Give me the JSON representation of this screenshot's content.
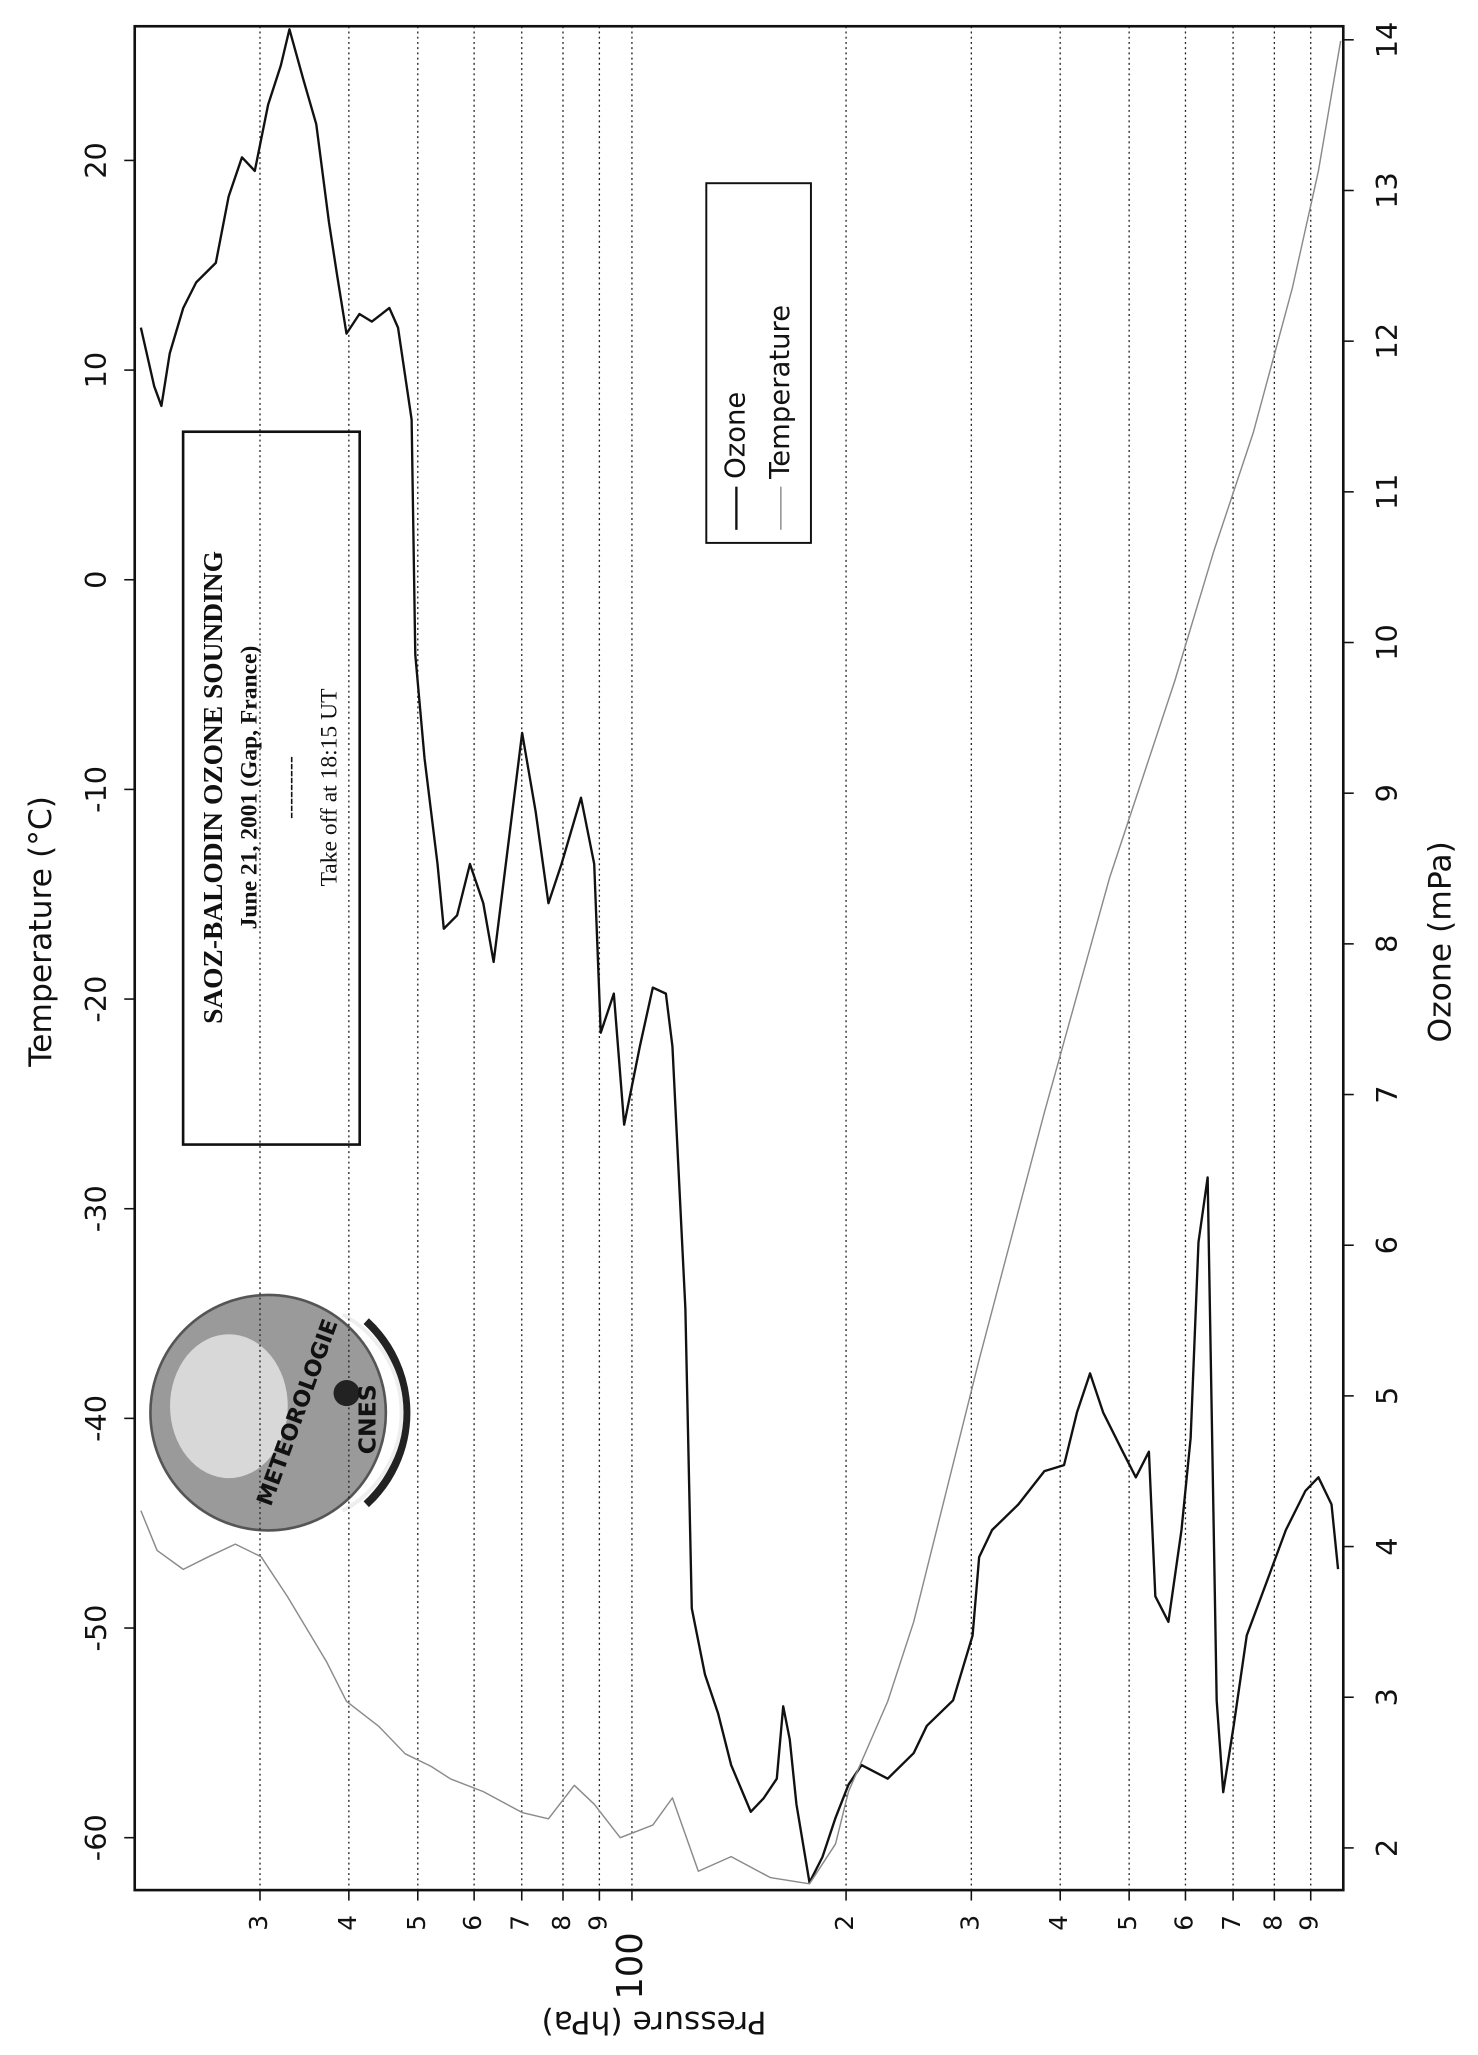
{
  "chart_data": {
    "type": "line",
    "title": "SAOZ-BALODIN OZONE SOUNDING",
    "subtitle": "June 21, 2001 (Gap, France)",
    "separator": "---------",
    "annotation": "Take off at 18:15 UT",
    "logo": {
      "text": "METEOROLOGIE",
      "sub": "CNES"
    },
    "x_label": "Pressure (hPa)",
    "y_label": "Temperature (°C)",
    "y2_label": "Ozone (mPa)",
    "xscale": "log",
    "grid": true,
    "xlim": [
      20,
      1000
    ],
    "xticks": [
      {
        "value": 30,
        "label": "3"
      },
      {
        "value": 40,
        "label": "4"
      },
      {
        "value": 50,
        "label": "5"
      },
      {
        "value": 60,
        "label": "6"
      },
      {
        "value": 70,
        "label": "7"
      },
      {
        "value": 80,
        "label": "8"
      },
      {
        "value": 90,
        "label": "9"
      },
      100,
      {
        "value": 200,
        "label": "2"
      },
      {
        "value": 300,
        "label": "3"
      },
      {
        "value": 400,
        "label": "4"
      },
      {
        "value": 500,
        "label": "5"
      },
      {
        "value": 600,
        "label": "6"
      },
      {
        "value": 700,
        "label": "7"
      },
      {
        "value": 800,
        "label": "8"
      },
      {
        "value": 900,
        "label": "9"
      }
    ],
    "ylim": [
      -62.5,
      26.4
    ],
    "yticks": [
      -60,
      -50,
      -40,
      -30,
      -20,
      -10,
      0,
      10,
      20
    ],
    "y2lim": [
      1.72,
      14.09
    ],
    "y2ticks": [
      2,
      3,
      4,
      5,
      6,
      7,
      8,
      9,
      10,
      11,
      12,
      13,
      14
    ],
    "series": [
      {
        "name": "Ozone",
        "color": "#111111",
        "axis": "y2",
        "x": [
          20.4,
          21.3,
          21.8,
          22.4,
          23.4,
          24.4,
          26.0,
          27.1,
          28.3,
          29.5,
          30.8,
          32.1,
          33.0,
          34.5,
          36.0,
          37.5,
          38.5,
          39.7,
          41.4,
          43.1,
          45.6,
          46.9,
          49.0,
          49.6,
          51.1,
          53.3,
          54.4,
          56.8,
          59.2,
          61.8,
          63.9,
          67.2,
          70.1,
          73.2,
          76.3,
          79.6,
          84.8,
          88.5,
          90.4,
          94.3,
          97.5,
          102.6,
          107,
          111.6,
          114,
          118.9,
          121.4,
          126.7,
          132.2,
          137.9,
          146.9,
          153.2,
          159.8,
          163.2,
          166.7,
          170.3,
          177.7,
          185.3,
          193.3,
          201.6,
          210.3,
          228.9,
          249,
          259.8,
          282.8,
          301.2,
          307.7,
          320.9,
          349.3,
          380.1,
          404.9,
          422.4,
          440.6,
          459.7,
          489.7,
          510.9,
          533,
          544.3,
          567.8,
          592.3,
          610.1,
          625.7,
          644.6,
          663.7,
          677.9,
          701.3,
          731.7,
          779.5,
          830.5,
          884.8,
          922.9,
          962.7,
          983.3
        ],
        "values": [
          12.09,
          11.7,
          11.57,
          11.92,
          12.22,
          12.39,
          12.52,
          12.96,
          13.22,
          13.13,
          13.57,
          13.83,
          14.07,
          13.74,
          13.44,
          12.79,
          12.44,
          12.05,
          12.18,
          12.13,
          12.22,
          12.09,
          11.48,
          9.92,
          9.23,
          8.53,
          8.1,
          8.19,
          8.53,
          8.27,
          7.88,
          8.71,
          9.4,
          8.88,
          8.27,
          8.53,
          8.97,
          8.53,
          7.41,
          7.67,
          6.8,
          7.32,
          7.71,
          7.67,
          7.32,
          5.58,
          3.59,
          3.15,
          2.89,
          2.55,
          2.24,
          2.33,
          2.46,
          2.94,
          2.72,
          2.29,
          1.77,
          1.94,
          2.2,
          2.42,
          2.55,
          2.46,
          2.63,
          2.81,
          2.98,
          3.41,
          3.93,
          4.11,
          4.28,
          4.5,
          4.54,
          4.89,
          5.15,
          4.89,
          4.63,
          4.46,
          4.63,
          3.67,
          3.5,
          4.11,
          4.72,
          6.02,
          6.45,
          2.98,
          2.37,
          2.81,
          3.41,
          3.76,
          4.11,
          4.37,
          4.46,
          4.28,
          3.85
        ]
      },
      {
        "name": "Temperature",
        "color": "#8a8a8a",
        "axis": "y",
        "x": [
          20.4,
          21.5,
          23.4,
          25.4,
          27.7,
          30.1,
          32.8,
          37.2,
          39.7,
          44.1,
          48.0,
          52.2,
          55.6,
          61.8,
          70.1,
          76.3,
          83.0,
          88.5,
          96.3,
          107,
          114,
          124,
          137.9,
          156.5,
          177.7,
          193.3,
          201.6,
          228.9,
          249,
          307.7,
          380.1,
          469.5,
          579.9,
          658.1,
          747,
          847.8,
          922.9,
          991.6
        ],
        "values": [
          -44.4,
          -46.3,
          -47.2,
          -46.6,
          -46.0,
          -46.6,
          -48.5,
          -51.6,
          -53.5,
          -54.7,
          -56.0,
          -56.6,
          -57.2,
          -57.8,
          -58.8,
          -59.1,
          -57.5,
          -58.4,
          -60,
          -59.4,
          -58.1,
          -61.6,
          -60.9,
          -61.9,
          -62.2,
          -60.3,
          -57.8,
          -53.5,
          -49.7,
          -37.2,
          -25.4,
          -14.2,
          -4.8,
          1.4,
          7.0,
          13.9,
          19.5,
          25.7
        ]
      }
    ]
  }
}
